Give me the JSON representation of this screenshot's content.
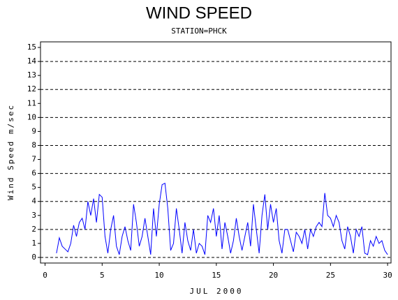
{
  "chart_data": {
    "type": "line",
    "title": "WIND SPEED",
    "subtitle": "STATION=PHCK",
    "x_label": "JUL 2000",
    "y_label": "Wind Speed m/sec",
    "x": [
      1,
      1.25,
      1.5,
      1.75,
      2,
      2.25,
      2.5,
      2.75,
      3,
      3.25,
      3.5,
      3.75,
      4,
      4.25,
      4.5,
      4.75,
      5,
      5.25,
      5.5,
      5.75,
      6,
      6.25,
      6.5,
      6.75,
      7,
      7.25,
      7.5,
      7.75,
      8,
      8.25,
      8.5,
      8.75,
      9,
      9.25,
      9.5,
      9.75,
      10,
      10.25,
      10.5,
      10.75,
      11,
      11.25,
      11.5,
      11.75,
      12,
      12.25,
      12.5,
      12.75,
      13,
      13.25,
      13.5,
      13.75,
      14,
      14.25,
      14.5,
      14.75,
      15,
      15.25,
      15.5,
      15.75,
      16,
      16.25,
      16.5,
      16.75,
      17,
      17.25,
      17.5,
      17.75,
      18,
      18.25,
      18.5,
      18.75,
      19,
      19.25,
      19.5,
      19.75,
      20,
      20.25,
      20.5,
      20.75,
      21,
      21.25,
      21.5,
      21.75,
      22,
      22.25,
      22.5,
      22.75,
      23,
      23.25,
      23.5,
      23.75,
      24,
      24.25,
      24.5,
      24.75,
      25,
      25.25,
      25.5,
      25.75,
      26,
      26.25,
      26.5,
      26.75,
      27,
      27.25,
      27.5,
      27.75,
      28,
      28.25,
      28.5,
      28.75,
      29,
      29.25,
      29.5,
      29.75,
      30
    ],
    "series": [
      {
        "name": "Wind Speed",
        "color": "#0000ff",
        "values": [
          0.3,
          1.4,
          0.8,
          0.6,
          0.4,
          1.0,
          2.3,
          1.5,
          2.5,
          2.8,
          2.0,
          4.0,
          3.0,
          4.2,
          2.5,
          4.5,
          4.3,
          1.5,
          0.3,
          2.0,
          3.0,
          0.8,
          0.2,
          1.5,
          2.2,
          1.2,
          0.5,
          3.8,
          2.5,
          0.8,
          1.5,
          2.8,
          1.5,
          0.2,
          3.5,
          1.5,
          3.8,
          5.2,
          5.3,
          3.5,
          0.5,
          1.0,
          3.5,
          2.0,
          0.3,
          2.5,
          1.2,
          0.5,
          2.0,
          0.3,
          1.0,
          0.8,
          0.2,
          3.0,
          2.5,
          3.5,
          1.5,
          3.0,
          0.6,
          2.5,
          1.5,
          0.3,
          1.2,
          2.8,
          1.5,
          0.5,
          1.5,
          2.5,
          0.8,
          3.8,
          2.0,
          0.3,
          3.0,
          4.5,
          2.0,
          3.8,
          2.5,
          3.5,
          1.2,
          0.3,
          2.0,
          2.0,
          1.2,
          0.4,
          1.8,
          1.5,
          1.0,
          2.0,
          0.6,
          2.0,
          1.5,
          2.2,
          2.5,
          2.2,
          4.6,
          3.0,
          2.8,
          2.2,
          3.0,
          2.5,
          1.2,
          0.6,
          2.2,
          1.5,
          0.3,
          2.0,
          1.5,
          2.2,
          0.3,
          0.2,
          1.2,
          0.8,
          1.5,
          1.0,
          1.2,
          0.5,
          0.2
        ]
      }
    ],
    "xlim": [
      -0.4,
      30.3
    ],
    "ylim": [
      -0.4,
      15.4
    ],
    "xticks": [
      0,
      5,
      10,
      15,
      20,
      25,
      30
    ],
    "yticks": [
      0,
      1,
      2,
      3,
      4,
      5,
      6,
      7,
      8,
      9,
      10,
      11,
      12,
      13,
      14,
      15
    ],
    "reference_lines": [
      0,
      2,
      4,
      6,
      8,
      10,
      12,
      14
    ]
  }
}
